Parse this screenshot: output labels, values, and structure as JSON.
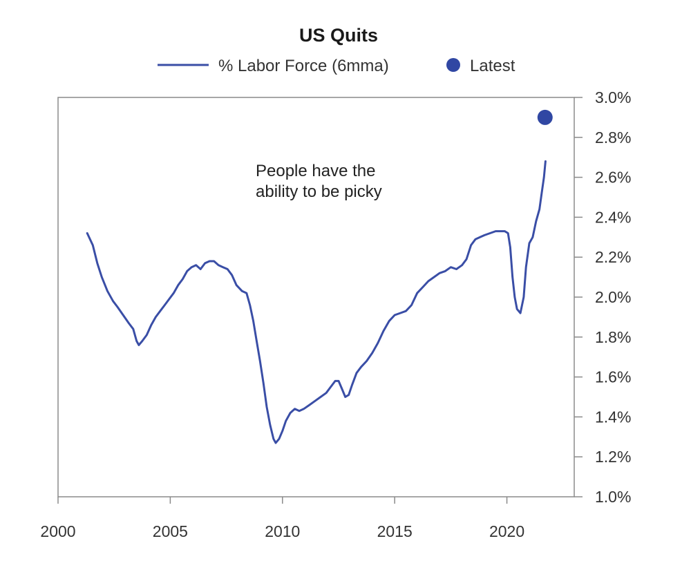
{
  "chart_data": {
    "type": "line",
    "title": "US Quits",
    "legend": {
      "placement": "top",
      "entries": [
        {
          "label": "% Labor Force (6mma)",
          "marker": "line"
        },
        {
          "label": "Latest",
          "marker": "dot"
        }
      ]
    },
    "colors": {
      "series": "#3a4ea6",
      "latest": "#3047a3"
    },
    "annotation": [
      "People have the",
      "ability to be picky"
    ],
    "x_axis": {
      "range": [
        2000,
        2023
      ],
      "ticks": [
        2000,
        2005,
        2010,
        2015,
        2020
      ],
      "tick_labels": [
        "2000",
        "2005",
        "2010",
        "2015",
        "2020"
      ]
    },
    "y_axis": {
      "position": "right",
      "range": [
        1.0,
        3.0
      ],
      "ticks": [
        1.0,
        1.2,
        1.4,
        1.6,
        1.8,
        2.0,
        2.2,
        2.4,
        2.6,
        2.8,
        3.0
      ],
      "tick_labels": [
        "1.0%",
        "1.2%",
        "1.4%",
        "1.6%",
        "1.8%",
        "2.0%",
        "2.2%",
        "2.4%",
        "2.6%",
        "2.8%",
        "3.0%"
      ]
    },
    "grid": false,
    "series": [
      {
        "name": "% Labor Force (6mma)",
        "points": [
          [
            2001.3,
            2.32
          ],
          [
            2001.55,
            2.26
          ],
          [
            2001.75,
            2.17
          ],
          [
            2001.95,
            2.1
          ],
          [
            2002.2,
            2.03
          ],
          [
            2002.45,
            1.98
          ],
          [
            2002.65,
            1.95
          ],
          [
            2002.9,
            1.91
          ],
          [
            2003.15,
            1.87
          ],
          [
            2003.35,
            1.84
          ],
          [
            2003.5,
            1.78
          ],
          [
            2003.6,
            1.76
          ],
          [
            2003.75,
            1.78
          ],
          [
            2003.95,
            1.81
          ],
          [
            2004.15,
            1.86
          ],
          [
            2004.35,
            1.9
          ],
          [
            2004.55,
            1.93
          ],
          [
            2004.75,
            1.96
          ],
          [
            2004.95,
            1.99
          ],
          [
            2005.15,
            2.02
          ],
          [
            2005.35,
            2.06
          ],
          [
            2005.55,
            2.09
          ],
          [
            2005.75,
            2.13
          ],
          [
            2005.95,
            2.15
          ],
          [
            2006.15,
            2.16
          ],
          [
            2006.35,
            2.14
          ],
          [
            2006.55,
            2.17
          ],
          [
            2006.75,
            2.18
          ],
          [
            2006.95,
            2.18
          ],
          [
            2007.15,
            2.16
          ],
          [
            2007.35,
            2.15
          ],
          [
            2007.55,
            2.14
          ],
          [
            2007.75,
            2.11
          ],
          [
            2007.95,
            2.06
          ],
          [
            2008.2,
            2.03
          ],
          [
            2008.4,
            2.02
          ],
          [
            2008.55,
            1.96
          ],
          [
            2008.7,
            1.88
          ],
          [
            2008.85,
            1.78
          ],
          [
            2009.0,
            1.68
          ],
          [
            2009.15,
            1.57
          ],
          [
            2009.3,
            1.45
          ],
          [
            2009.45,
            1.36
          ],
          [
            2009.6,
            1.29
          ],
          [
            2009.7,
            1.27
          ],
          [
            2009.85,
            1.29
          ],
          [
            2010.0,
            1.33
          ],
          [
            2010.15,
            1.38
          ],
          [
            2010.35,
            1.42
          ],
          [
            2010.55,
            1.44
          ],
          [
            2010.75,
            1.43
          ],
          [
            2010.95,
            1.44
          ],
          [
            2011.2,
            1.46
          ],
          [
            2011.45,
            1.48
          ],
          [
            2011.7,
            1.5
          ],
          [
            2011.95,
            1.52
          ],
          [
            2012.15,
            1.55
          ],
          [
            2012.35,
            1.58
          ],
          [
            2012.5,
            1.58
          ],
          [
            2012.65,
            1.54
          ],
          [
            2012.8,
            1.5
          ],
          [
            2012.95,
            1.51
          ],
          [
            2013.1,
            1.56
          ],
          [
            2013.3,
            1.62
          ],
          [
            2013.5,
            1.65
          ],
          [
            2013.75,
            1.68
          ],
          [
            2014.0,
            1.72
          ],
          [
            2014.25,
            1.77
          ],
          [
            2014.5,
            1.83
          ],
          [
            2014.75,
            1.88
          ],
          [
            2015.0,
            1.91
          ],
          [
            2015.25,
            1.92
          ],
          [
            2015.5,
            1.93
          ],
          [
            2015.75,
            1.96
          ],
          [
            2016.0,
            2.02
          ],
          [
            2016.25,
            2.05
          ],
          [
            2016.5,
            2.08
          ],
          [
            2016.75,
            2.1
          ],
          [
            2017.0,
            2.12
          ],
          [
            2017.25,
            2.13
          ],
          [
            2017.5,
            2.15
          ],
          [
            2017.75,
            2.14
          ],
          [
            2018.0,
            2.16
          ],
          [
            2018.2,
            2.19
          ],
          [
            2018.4,
            2.26
          ],
          [
            2018.6,
            2.29
          ],
          [
            2018.8,
            2.3
          ],
          [
            2019.0,
            2.31
          ],
          [
            2019.25,
            2.32
          ],
          [
            2019.5,
            2.33
          ],
          [
            2019.7,
            2.33
          ],
          [
            2019.9,
            2.33
          ],
          [
            2020.05,
            2.32
          ],
          [
            2020.15,
            2.25
          ],
          [
            2020.25,
            2.1
          ],
          [
            2020.35,
            2.0
          ],
          [
            2020.45,
            1.94
          ],
          [
            2020.6,
            1.92
          ],
          [
            2020.75,
            2.0
          ],
          [
            2020.85,
            2.15
          ],
          [
            2021.0,
            2.27
          ],
          [
            2021.15,
            2.3
          ],
          [
            2021.3,
            2.38
          ],
          [
            2021.45,
            2.44
          ],
          [
            2021.55,
            2.52
          ],
          [
            2021.65,
            2.6
          ],
          [
            2021.72,
            2.68
          ]
        ]
      }
    ],
    "latest": {
      "x": 2021.7,
      "y": 2.9
    }
  }
}
